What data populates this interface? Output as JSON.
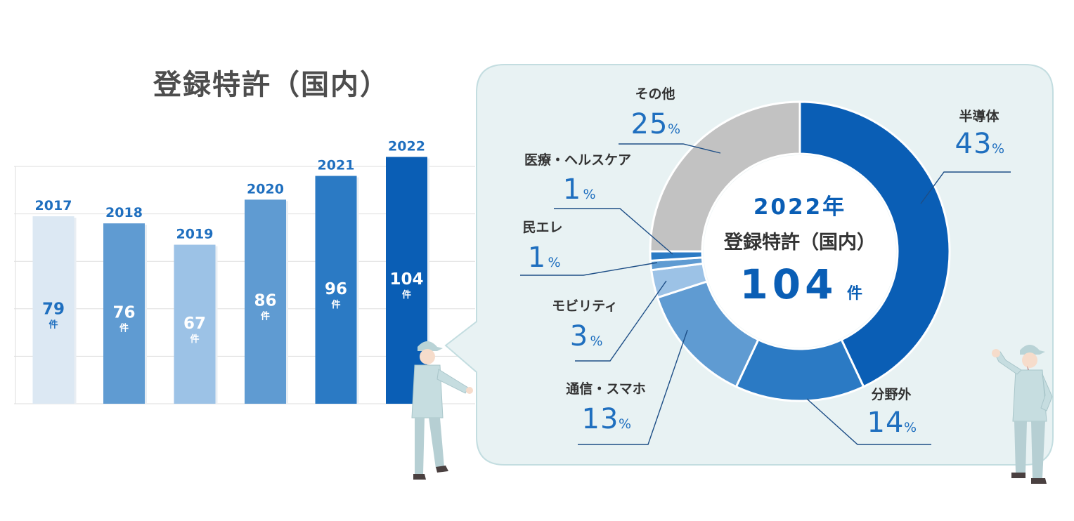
{
  "title": "登録特許（国内）",
  "colors": {
    "bar_2017": "#dce8f3",
    "bar_2018": "#5f9bd2",
    "bar_2019": "#9cc2e6",
    "bar_2020": "#5f9bd2",
    "bar_2021": "#2b7ac4",
    "bar_2022": "#0a5eb5",
    "label_blue": "#0a5eb5",
    "panel_bg": "#e8f2f3",
    "panel_border": "#c3dde0"
  },
  "chart_data": [
    {
      "type": "bar",
      "title": "登録特許（国内）",
      "categories": [
        "2017",
        "2018",
        "2019",
        "2020",
        "2021",
        "2022"
      ],
      "values": [
        79,
        76,
        67,
        86,
        96,
        104
      ],
      "value_labels": [
        "79",
        "76",
        "67",
        "86",
        "96",
        "104"
      ],
      "unit": "件",
      "ylim": [
        0,
        100
      ],
      "grid": true
    },
    {
      "type": "pie",
      "center": {
        "year": "2022年",
        "title": "登録特許（国内）",
        "total": "104",
        "unit": "件"
      },
      "slices": [
        {
          "label": "半導体",
          "value": 43,
          "display": "43",
          "color": "#0a5eb5"
        },
        {
          "label": "分野外",
          "value": 14,
          "display": "14",
          "color": "#2b7ac4"
        },
        {
          "label": "通信・スマホ",
          "value": 13,
          "display": "13",
          "color": "#5f9bd2"
        },
        {
          "label": "モビリティ",
          "value": 3,
          "display": "3",
          "color": "#9cc2e6"
        },
        {
          "label": "民エレ",
          "value": 1,
          "display": "1",
          "color": "#5f9bd2"
        },
        {
          "label": "医療・ヘルスケア",
          "value": 1,
          "display": "1",
          "color": "#2b7ac4"
        },
        {
          "label": "その他",
          "value": 25,
          "display": "25",
          "color": "#c2c2c2"
        }
      ],
      "percent_sign": "%"
    }
  ]
}
